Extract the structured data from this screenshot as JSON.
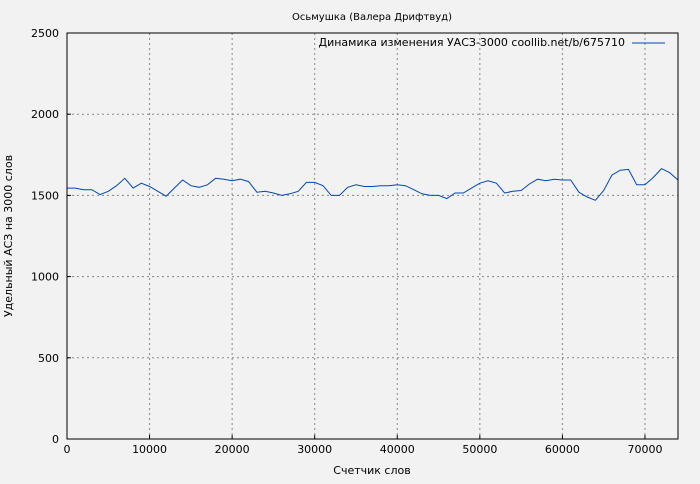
{
  "chart_data": {
    "type": "line",
    "title": "Осьмушка (Валера Дрифтвуд)",
    "xlabel": "Счетчик слов",
    "ylabel": "Удельный АСЗ на 3000 слов",
    "xlim": [
      0,
      74000
    ],
    "ylim": [
      0,
      2500
    ],
    "xticks": [
      "0",
      "10000",
      "20000",
      "30000",
      "40000",
      "50000",
      "60000",
      "70000"
    ],
    "yticks": [
      "0",
      "500",
      "1000",
      "1500",
      "2000",
      "2500"
    ],
    "grid": true,
    "legend_position": "top-right",
    "series": [
      {
        "name": "Динамика изменения УАСЗ-3000 coollib.net/b/675710",
        "color": "#0047b3",
        "x": [
          0,
          1000,
          2000,
          3000,
          4000,
          5000,
          6000,
          7000,
          8000,
          9000,
          10000,
          11000,
          12000,
          13000,
          14000,
          15000,
          16000,
          17000,
          18000,
          19000,
          20000,
          21000,
          22000,
          23000,
          24000,
          25000,
          26000,
          27000,
          28000,
          29000,
          30000,
          31000,
          32000,
          33000,
          34000,
          35000,
          36000,
          37000,
          38000,
          39000,
          40000,
          41000,
          42000,
          43000,
          44000,
          45000,
          46000,
          47000,
          48000,
          49000,
          50000,
          51000,
          52000,
          53000,
          54000,
          55000,
          56000,
          57000,
          58000,
          59000,
          60000,
          61000,
          62000,
          63000,
          64000,
          65000,
          66000,
          67000,
          68000,
          69000,
          70000,
          71000,
          72000,
          73000,
          74000
        ],
        "y": [
          1545,
          1545,
          1535,
          1535,
          1505,
          1525,
          1560,
          1605,
          1545,
          1575,
          1555,
          1525,
          1495,
          1545,
          1595,
          1560,
          1550,
          1565,
          1605,
          1600,
          1590,
          1600,
          1585,
          1520,
          1525,
          1515,
          1500,
          1510,
          1525,
          1580,
          1580,
          1560,
          1500,
          1500,
          1550,
          1565,
          1555,
          1555,
          1560,
          1560,
          1565,
          1560,
          1535,
          1510,
          1500,
          1500,
          1480,
          1515,
          1515,
          1545,
          1575,
          1590,
          1575,
          1515,
          1525,
          1530,
          1570,
          1600,
          1590,
          1600,
          1595,
          1595,
          1520,
          1490,
          1470,
          1530,
          1625,
          1655,
          1660,
          1565,
          1565,
          1610,
          1665,
          1640,
          1595
        ]
      }
    ]
  }
}
